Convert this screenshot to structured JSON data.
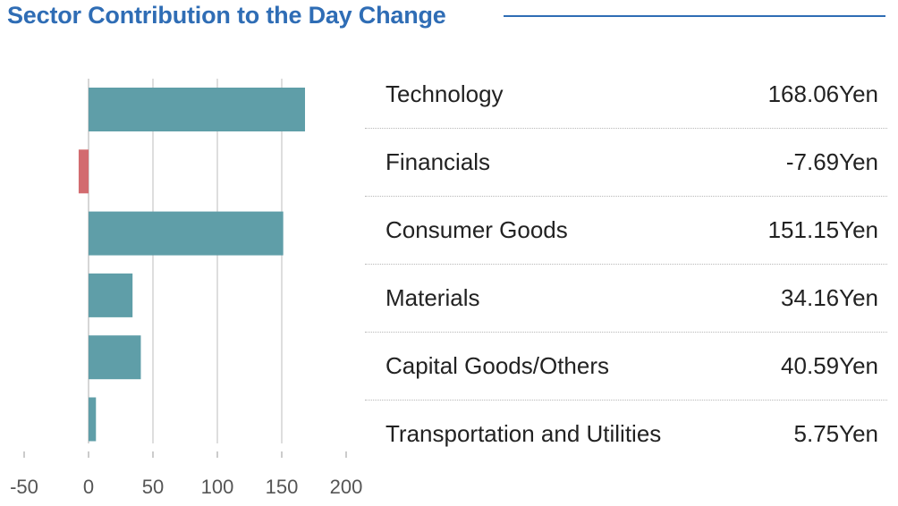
{
  "header": {
    "title": "Sector Contribution to the Day Change"
  },
  "colors": {
    "title": "#2f6db5",
    "positive_bar": "#5f9ea8",
    "negative_bar": "#d26b6f",
    "gridline": "#c8c8c8",
    "axis_text": "#555555"
  },
  "chart_data": {
    "type": "bar",
    "orientation": "horizontal",
    "title": "Sector Contribution to the Day Change",
    "categories": [
      "Technology",
      "Financials",
      "Consumer Goods",
      "Materials",
      "Capital Goods/Others",
      "Transportation and Utilities"
    ],
    "values": [
      168.06,
      -7.69,
      151.15,
      34.16,
      40.59,
      5.75
    ],
    "value_labels": [
      "168.06Yen",
      "-7.69Yen",
      "151.15Yen",
      "34.16Yen",
      "40.59Yen",
      "5.75Yen"
    ],
    "x_ticks": [
      "-50",
      "0",
      "50",
      "100",
      "150",
      "200"
    ],
    "xlim": [
      -50,
      200
    ],
    "grid": true,
    "legend_placement": "right"
  }
}
